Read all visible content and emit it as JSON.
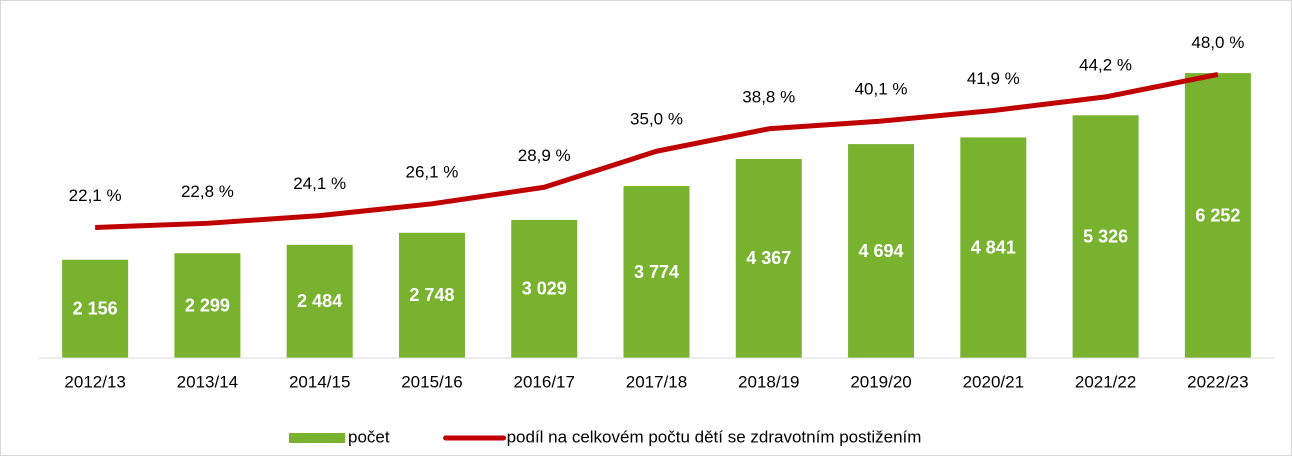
{
  "chart_data": {
    "type": "bar_line",
    "categories": [
      "2012/13",
      "2013/14",
      "2014/15",
      "2015/16",
      "2016/17",
      "2017/18",
      "2018/19",
      "2019/20",
      "2020/21",
      "2021/22",
      "2022/23"
    ],
    "series": [
      {
        "name": "počet",
        "type": "bar",
        "color": "#78b22f",
        "values": [
          2156,
          2299,
          2484,
          2748,
          3029,
          3774,
          4367,
          4694,
          4841,
          5326,
          6252
        ],
        "value_labels": [
          "2 156",
          "2 299",
          "2 484",
          "2 748",
          "3 029",
          "3 774",
          "4 367",
          "4 694",
          "4 841",
          "5 326",
          "6 252"
        ]
      },
      {
        "name": "podíl na celkovém počtu dětí se zdravotním postižením",
        "type": "line",
        "axis": "y2",
        "color": "#c00000",
        "values": [
          22.1,
          22.8,
          24.1,
          26.1,
          28.9,
          35.0,
          38.8,
          40.1,
          41.9,
          44.2,
          48.0
        ],
        "value_labels": [
          "22,1 %",
          "22,8 %",
          "24,1 %",
          "26,1 %",
          "28,9 %",
          "35,0 %",
          "38,8 %",
          "40,1 %",
          "41,9 %",
          "44,2 %",
          "48,0 %"
        ]
      }
    ],
    "ylim": [
      0,
      7000
    ],
    "y2lim": [
      0,
      54
    ],
    "legend": "bottom"
  }
}
